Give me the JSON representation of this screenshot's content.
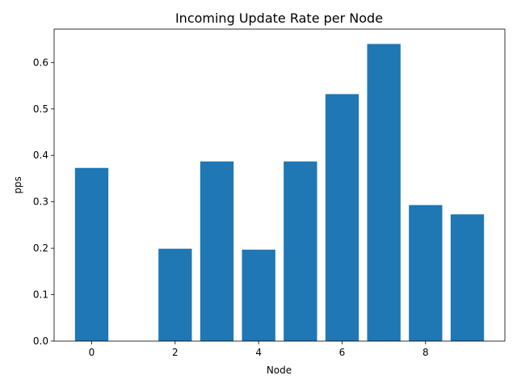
{
  "chart_data": {
    "type": "bar",
    "title": "Incoming Update Rate per Node",
    "xlabel": "Node",
    "ylabel": "pps",
    "x": [
      0,
      2,
      3,
      4,
      5,
      6,
      7,
      8,
      9
    ],
    "values": [
      0.373,
      0.199,
      0.387,
      0.197,
      0.387,
      0.532,
      0.64,
      0.293,
      0.273
    ],
    "xlim": [
      -0.9,
      9.9
    ],
    "ylim": [
      0,
      0.672
    ],
    "xticks": [
      0,
      2,
      4,
      6,
      8
    ],
    "yticks": [
      0.0,
      0.1,
      0.2,
      0.3,
      0.4,
      0.5,
      0.6
    ],
    "xtick_labels": [
      "0",
      "2",
      "4",
      "6",
      "8"
    ],
    "ytick_labels": [
      "0.0",
      "0.1",
      "0.2",
      "0.3",
      "0.4",
      "0.5",
      "0.6"
    ],
    "bar_color": "#1f77b4",
    "grid": false,
    "legend": "none"
  }
}
